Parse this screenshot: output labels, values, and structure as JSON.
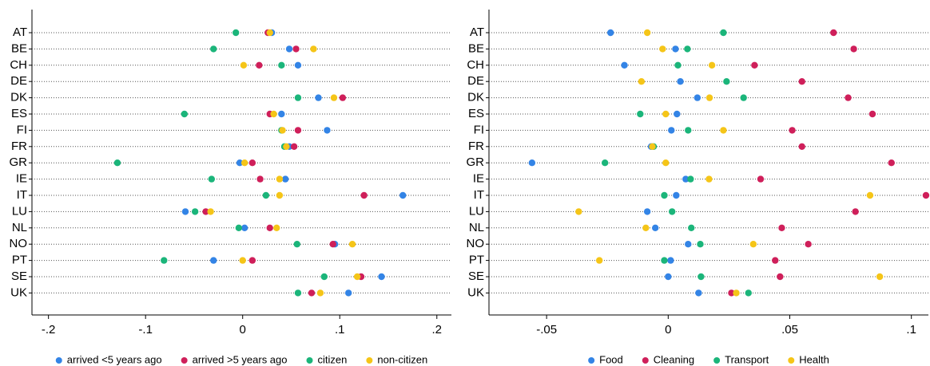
{
  "chart_data": [
    {
      "type": "dot",
      "categories": [
        "AT",
        "BE",
        "CH",
        "DE",
        "DK",
        "ES",
        "FI",
        "FR",
        "GR",
        "IE",
        "IT",
        "LU",
        "NL",
        "NO",
        "PT",
        "SE",
        "UK"
      ],
      "series": [
        {
          "name": "arrived <5 years ago",
          "color": "#3384e6",
          "values": [
            0.03,
            0.048,
            0.057,
            null,
            0.078,
            0.04,
            0.087,
            0.048,
            -0.003,
            0.044,
            0.165,
            -0.059,
            0.002,
            0.095,
            -0.03,
            0.143,
            0.109
          ]
        },
        {
          "name": "arrived >5 years ago",
          "color": "#cf1f5a",
          "values": [
            0.026,
            0.055,
            0.017,
            null,
            0.103,
            0.028,
            0.057,
            0.053,
            0.01,
            0.018,
            0.125,
            -0.038,
            0.028,
            0.093,
            0.01,
            0.122,
            0.071
          ]
        },
        {
          "name": "citizen",
          "color": "#1bb57a",
          "values": [
            -0.007,
            -0.03,
            0.04,
            null,
            0.057,
            -0.06,
            0.04,
            0.043,
            -0.129,
            -0.032,
            0.024,
            -0.049,
            -0.004,
            0.056,
            -0.081,
            0.084,
            0.057
          ]
        },
        {
          "name": "non-citizen",
          "color": "#f5c518",
          "values": [
            0.028,
            0.073,
            0.001,
            null,
            0.094,
            0.032,
            0.041,
            0.045,
            0.002,
            0.038,
            0.038,
            -0.033,
            0.035,
            0.113,
            0.0,
            0.118,
            0.08
          ]
        }
      ],
      "xlim": [
        -0.217,
        0.215
      ],
      "xticks": [
        {
          "value": -0.2,
          "label": "-.2"
        },
        {
          "value": -0.1,
          "label": "-.1"
        },
        0,
        {
          "value": 0.1,
          "label": ".1"
        },
        {
          "value": 0.2,
          "label": ".2"
        }
      ]
    },
    {
      "type": "dot",
      "categories": [
        "AT",
        "BE",
        "CH",
        "DE",
        "DK",
        "ES",
        "FI",
        "FR",
        "GR",
        "IE",
        "IT",
        "LU",
        "NL",
        "NO",
        "PT",
        "SE",
        "UK"
      ],
      "series": [
        {
          "name": "Food",
          "color": "#3384e6",
          "values": [
            -0.0237,
            0.003,
            -0.018,
            0.005,
            0.012,
            0.0036,
            0.0013,
            -0.007,
            -0.056,
            0.0072,
            0.0033,
            -0.0086,
            -0.0053,
            0.0082,
            0.001,
            0.0,
            0.0125
          ]
        },
        {
          "name": "Cleaning",
          "color": "#cf1f5a",
          "values": [
            0.068,
            0.0763,
            0.0355,
            0.055,
            0.074,
            0.084,
            0.051,
            0.055,
            0.0918,
            0.038,
            0.106,
            0.077,
            0.0467,
            0.0576,
            0.044,
            0.046,
            0.026
          ]
        },
        {
          "name": "Transport",
          "color": "#1bb57a",
          "values": [
            0.0227,
            0.0079,
            0.004,
            0.024,
            0.031,
            -0.0115,
            0.0082,
            -0.006,
            -0.026,
            0.0092,
            -0.0016,
            0.0016,
            0.0095,
            0.0132,
            -0.0016,
            0.0135,
            0.033
          ]
        },
        {
          "name": "Health",
          "color": "#f5c518",
          "values": [
            -0.0086,
            -0.0023,
            0.018,
            -0.011,
            0.017,
            -0.001,
            0.0227,
            -0.0065,
            -0.001,
            0.0168,
            0.083,
            -0.0368,
            -0.0092,
            0.035,
            -0.0283,
            0.087,
            0.028
          ]
        }
      ],
      "xlim": [
        -0.0737,
        0.107
      ],
      "xticks": [
        {
          "value": -0.05,
          "label": "-.05"
        },
        0,
        {
          "value": 0.05,
          "label": ".05"
        },
        {
          "value": 0.1,
          "label": ".1"
        }
      ]
    }
  ]
}
